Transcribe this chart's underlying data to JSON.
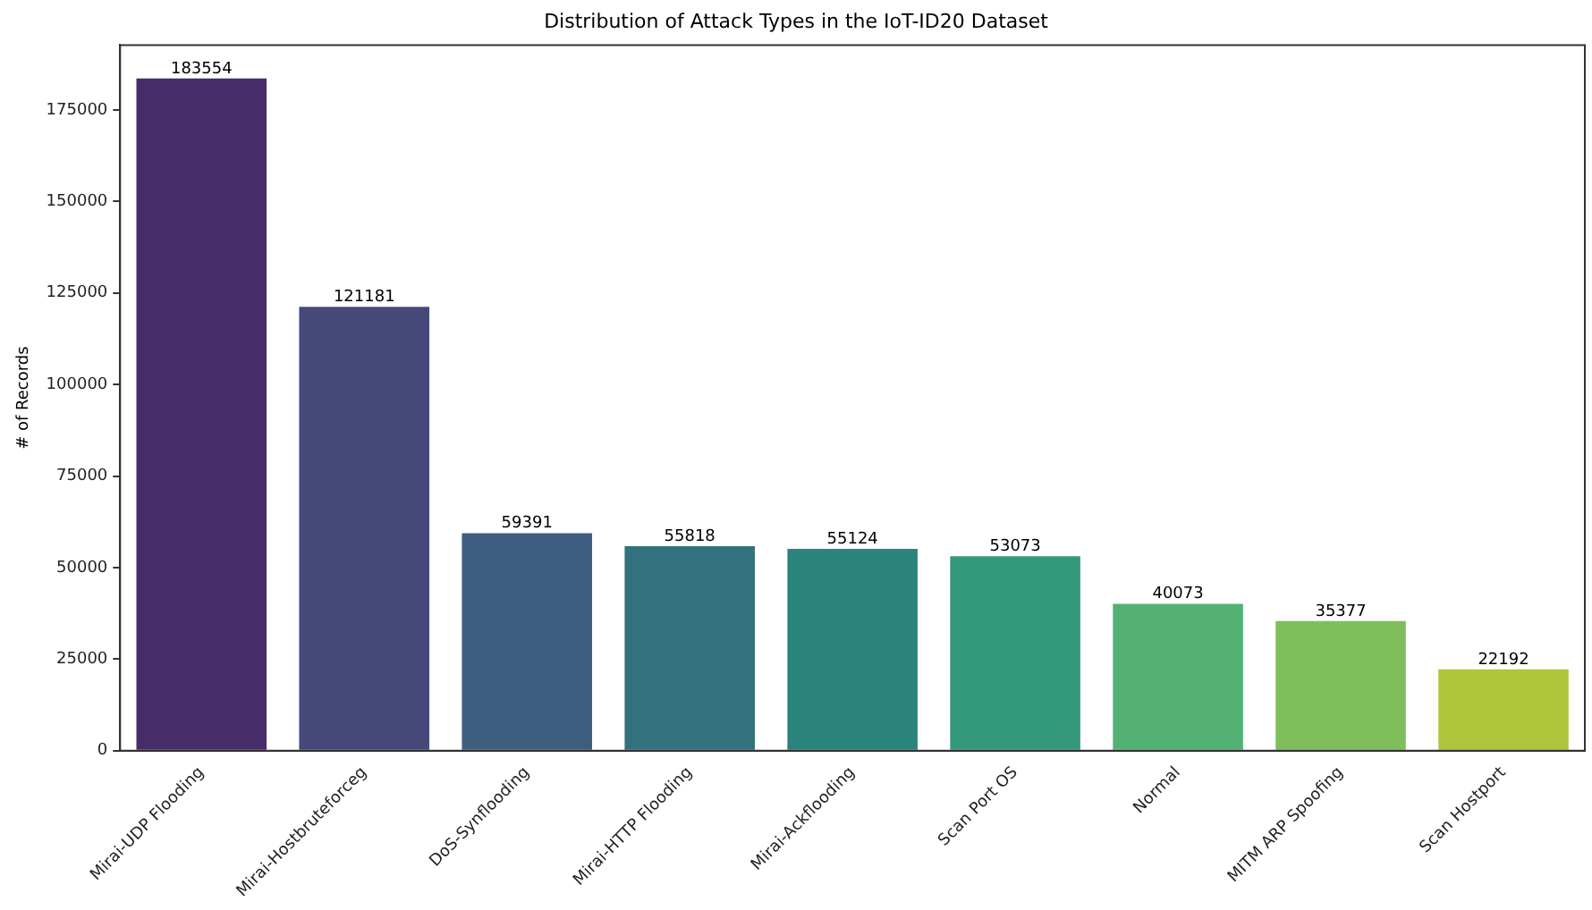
{
  "chart_data": {
    "type": "bar",
    "title": "Distribution of Attack Types in the IoT-ID20 Dataset",
    "ylabel": "# of Records",
    "categories": [
      "Mirai-UDP Flooding",
      "Mirai-Hostbruteforceg",
      "DoS-Synflooding",
      "Mirai-HTTP Flooding",
      "Mirai-Ackflooding",
      "Scan Port OS",
      "Normal",
      "MITM ARP Spoofing",
      "Scan Hostport"
    ],
    "values": [
      183554,
      121181,
      59391,
      55818,
      55124,
      53073,
      40073,
      35377,
      22192
    ],
    "colors": [
      "#472c6a",
      "#47487a",
      "#3e5e80",
      "#33717f",
      "#2b847c",
      "#33997a",
      "#53b174",
      "#7ebf5c",
      "#afc53c"
    ],
    "ylim": [
      0,
      192700
    ],
    "yticks": [
      0,
      25000,
      50000,
      75000,
      100000,
      125000,
      150000,
      175000
    ],
    "data_labels": true,
    "grid": false,
    "legend": false
  }
}
